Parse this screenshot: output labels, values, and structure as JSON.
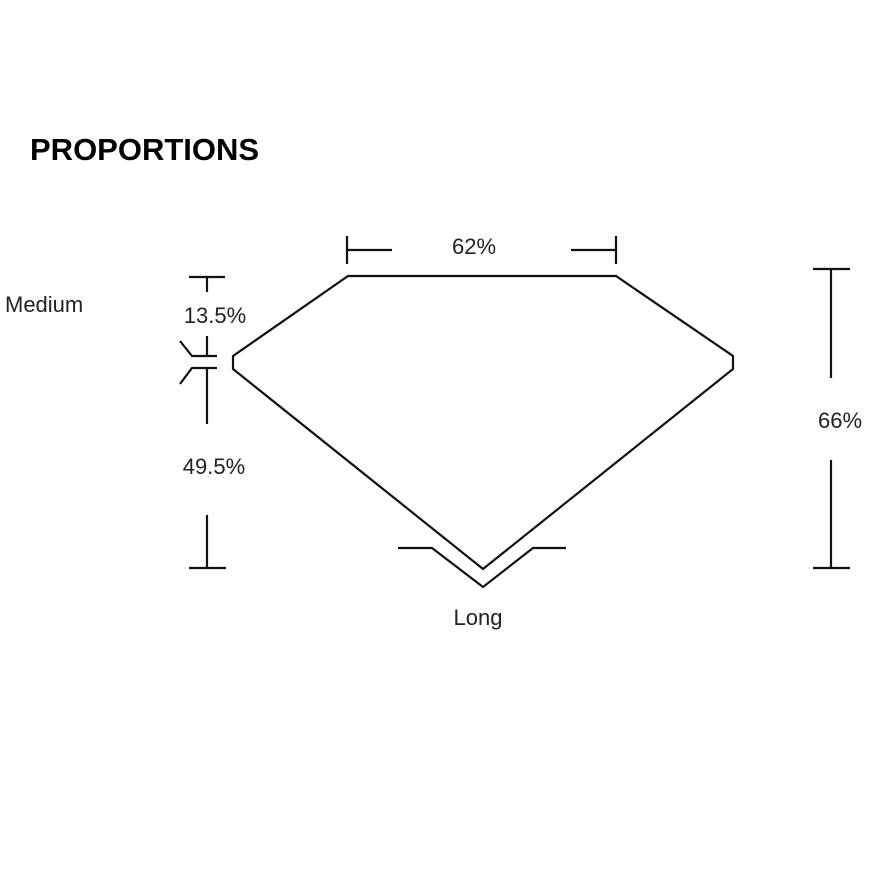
{
  "title": "PROPORTIONS",
  "labels": {
    "table": "62%",
    "crown": "13.5%",
    "pavilion": "49.5%",
    "depth": "66%",
    "girdle": "Medium",
    "culet": "Long"
  }
}
